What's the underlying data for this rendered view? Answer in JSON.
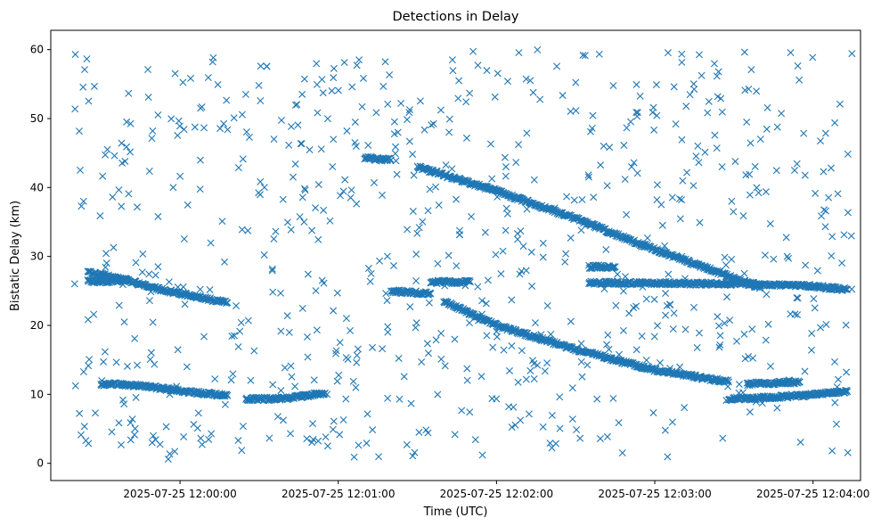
{
  "chart_data": {
    "type": "scatter",
    "title": "Detections in Delay",
    "xlabel": "Time (UTC)",
    "ylabel": "Bistatic Delay (km)",
    "x_unit": "datetime (UTC)",
    "xlim": [
      "2025-07-25 11:59:11",
      "2025-07-25 12:04:18"
    ],
    "ylim": [
      -2.5,
      62.8
    ],
    "grid": false,
    "marker": "x",
    "x_ticks": [
      "2025-07-25 12:00:00",
      "2025-07-25 12:01:00",
      "2025-07-25 12:02:00",
      "2025-07-25 12:03:00",
      "2025-07-25 12:04:00"
    ],
    "y_ticks": [
      0,
      10,
      20,
      30,
      40,
      50,
      60
    ],
    "series": [
      {
        "color": "#1f77b4",
        "points_per_track": 4,
        "tracks": [
          {
            "t": [
              "2025-07-25 11:59:25",
              "2025-07-25 11:59:40",
              "2025-07-25 11:59:55",
              "2025-07-25 12:00:18"
            ],
            "y": [
              27.8,
              26.5,
              25.0,
              23.3
            ]
          },
          {
            "t": [
              "2025-07-25 11:59:25",
              "2025-07-25 11:59:32",
              "2025-07-25 11:59:40"
            ],
            "y": [
              26.4,
              26.4,
              26.6
            ]
          },
          {
            "t": [
              "2025-07-25 11:59:30",
              "2025-07-25 11:59:45",
              "2025-07-25 12:00:00",
              "2025-07-25 12:00:18"
            ],
            "y": [
              11.5,
              11.3,
              10.5,
              9.8
            ]
          },
          {
            "t": [
              "2025-07-25 12:00:25",
              "2025-07-25 12:00:40",
              "2025-07-25 12:00:55"
            ],
            "y": [
              9.3,
              9.4,
              10.2
            ]
          },
          {
            "t": [
              "2025-07-25 12:01:10",
              "2025-07-25 12:01:20"
            ],
            "y": [
              44.3,
              44.0
            ]
          },
          {
            "t": [
              "2025-07-25 12:01:20",
              "2025-07-25 12:01:35"
            ],
            "y": [
              25.0,
              24.6
            ]
          },
          {
            "t": [
              "2025-07-25 12:01:35",
              "2025-07-25 12:01:50"
            ],
            "y": [
              26.3,
              26.3
            ]
          },
          {
            "t": [
              "2025-07-25 12:01:30",
              "2025-07-25 12:02:00",
              "2025-07-25 12:02:30",
              "2025-07-25 12:03:00",
              "2025-07-25 12:03:40"
            ],
            "y": [
              43.0,
              39.5,
              35.5,
              31.0,
              25.5
            ]
          },
          {
            "t": [
              "2025-07-25 12:03:40",
              "2025-07-25 12:04:00",
              "2025-07-25 12:04:13"
            ],
            "y": [
              26.0,
              25.7,
              25.2
            ]
          },
          {
            "t": [
              "2025-07-25 12:01:40",
              "2025-07-25 12:02:00",
              "2025-07-25 12:02:30",
              "2025-07-25 12:03:00",
              "2025-07-25 12:03:28"
            ],
            "y": [
              23.5,
              20.0,
              16.5,
              13.5,
              11.8
            ]
          },
          {
            "t": [
              "2025-07-25 12:03:28",
              "2025-07-25 12:03:55",
              "2025-07-25 12:04:13"
            ],
            "y": [
              9.3,
              9.8,
              10.4
            ]
          },
          {
            "t": [
              "2025-07-25 12:02:35",
              "2025-07-25 12:03:40"
            ],
            "y": [
              26.2,
              26.0
            ]
          },
          {
            "t": [
              "2025-07-25 12:02:35",
              "2025-07-25 12:02:45"
            ],
            "y": [
              28.5,
              28.5
            ]
          },
          {
            "t": [
              "2025-07-25 12:03:35",
              "2025-07-25 12:03:55"
            ],
            "y": [
              11.5,
              11.8
            ]
          }
        ],
        "scatter": {
          "n": 760,
          "t_range": [
            "2025-07-25 11:59:20",
            "2025-07-25 12:04:15"
          ],
          "y_range": [
            0.5,
            60
          ]
        }
      }
    ]
  }
}
